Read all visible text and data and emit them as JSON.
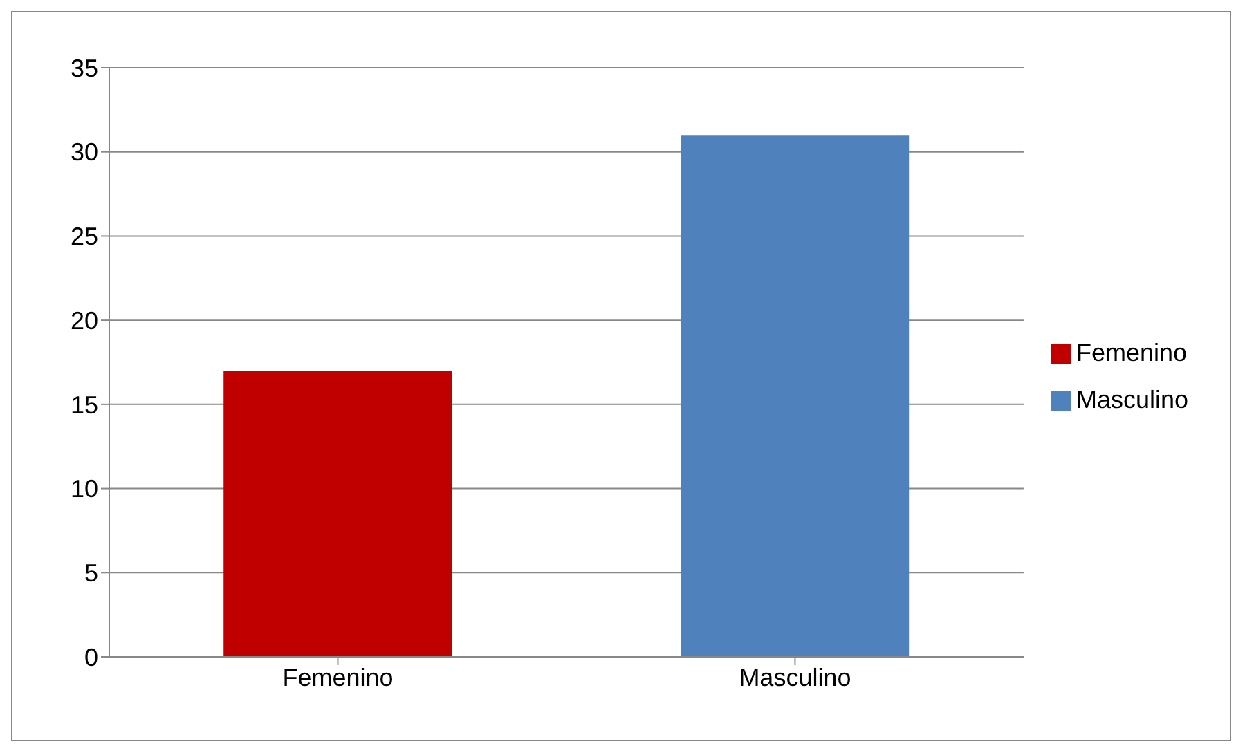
{
  "chart_data": {
    "type": "bar",
    "categories": [
      "Femenino",
      "Masculino"
    ],
    "series": [
      {
        "name": "Femenino",
        "color": "#c00000",
        "values": [
          17,
          null
        ]
      },
      {
        "name": "Masculino",
        "color": "#4f81bd",
        "values": [
          null,
          31
        ]
      }
    ],
    "stacked": true,
    "ylim": [
      0,
      35
    ],
    "yticks": [
      0,
      5,
      10,
      15,
      20,
      25,
      30,
      35
    ],
    "grid": "y",
    "legend": "right"
  }
}
